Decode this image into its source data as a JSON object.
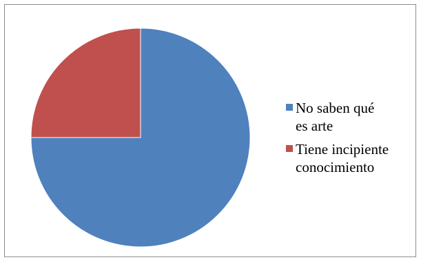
{
  "chart_data": {
    "type": "pie",
    "title": "",
    "slices": [
      {
        "label": "No saben qué\nes arte",
        "value": 75,
        "color": "#4F81BD"
      },
      {
        "label": "Tiene incipiente\nconocimiento",
        "value": 25,
        "color": "#C0504D"
      }
    ],
    "start_angle_deg": 0,
    "direction": "clockwise",
    "legend_position": "right",
    "slice_border_color": "#ffffff"
  }
}
